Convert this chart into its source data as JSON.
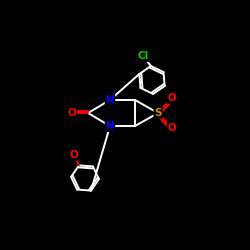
{
  "background_color": "#000000",
  "bond_color": "#ffffff",
  "atom_colors": {
    "N": "#0000ff",
    "O": "#ff0000",
    "S": "#cc8800",
    "Cl": "#00cc00",
    "C": "#ffffff"
  },
  "figsize": [
    2.5,
    2.5
  ],
  "dpi": 100
}
